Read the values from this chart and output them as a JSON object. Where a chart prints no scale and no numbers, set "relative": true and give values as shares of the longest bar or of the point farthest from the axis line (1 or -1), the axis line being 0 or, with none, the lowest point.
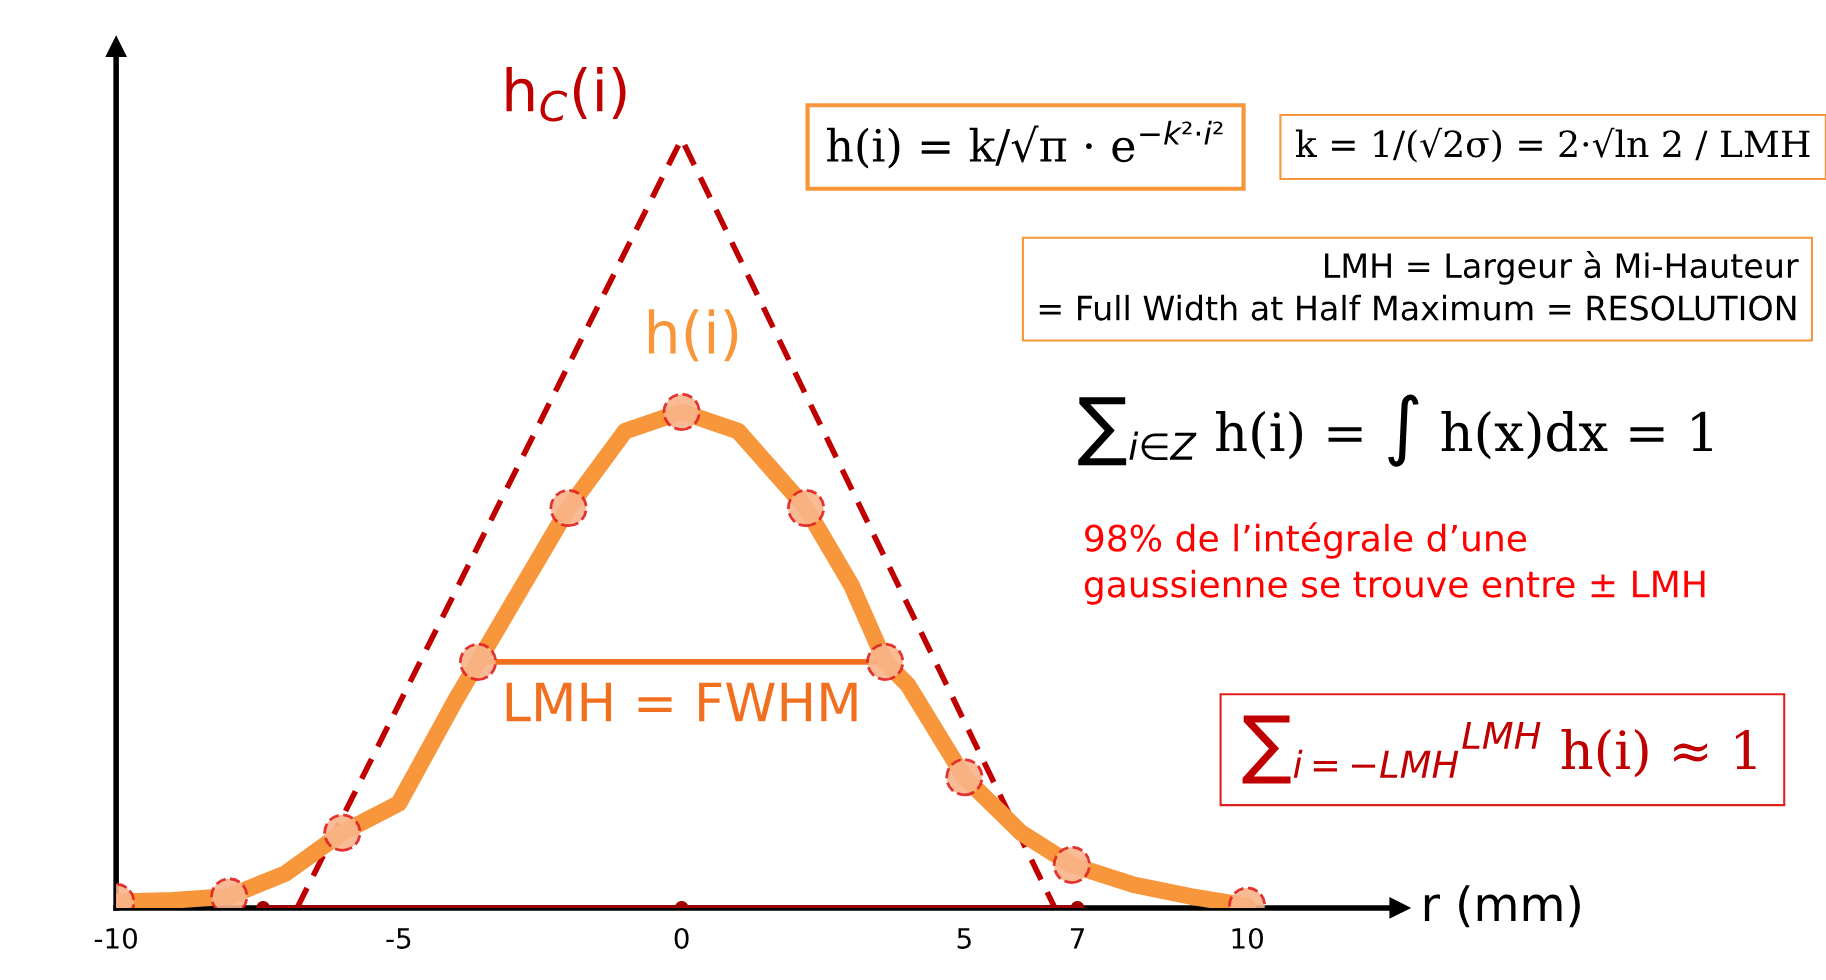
{
  "chart_data": {
    "type": "line",
    "relative": true,
    "xlabel": "r (mm)",
    "xlim": [
      -10,
      12.7
    ],
    "xticks": [
      -10,
      -5,
      0,
      5,
      7,
      10
    ],
    "legend": false,
    "grid": false,
    "series": [
      {
        "name": "h$_{C}$(i)",
        "line_style": "dashed",
        "marker": "none",
        "color": "#c00000",
        "x": [
          -6.8,
          0,
          6.6
        ],
        "values": [
          0,
          1,
          0
        ]
      },
      {
        "name": "h(i)",
        "line_style": "solid",
        "marker": "none",
        "color": "#f7963a",
        "x": [
          -10,
          -9,
          -8,
          -7,
          -6,
          -5,
          -4,
          -3.6,
          -2,
          -1,
          0,
          1,
          2.2,
          3,
          3.6,
          4,
          5,
          6,
          6.9,
          8,
          9,
          10
        ],
        "values": [
          0.008,
          0.01,
          0.015,
          0.045,
          0.098,
          0.136,
          0.27,
          0.32,
          0.52,
          0.62,
          0.645,
          0.62,
          0.52,
          0.42,
          0.32,
          0.29,
          0.17,
          0.098,
          0.056,
          0.03,
          0.015,
          0.003
        ]
      },
      {
        "type": "scatter",
        "marker": "circle",
        "color": "#f8b48a",
        "x": [
          -10,
          -8,
          -6,
          -3.6,
          -2,
          0,
          2.2,
          3.6,
          5,
          6.9,
          10
        ],
        "values": [
          0.008,
          0.015,
          0.098,
          0.32,
          0.52,
          0.645,
          0.52,
          0.32,
          0.17,
          0.056,
          0.003
        ]
      },
      {
        "type": "line",
        "line_style": "solid",
        "marker": "circle",
        "color": "#a00000",
        "x": [
          -7.4,
          0,
          7
        ],
        "values": [
          0,
          0,
          0
        ]
      },
      {
        "type": "line",
        "line_style": "solid",
        "marker": "circle",
        "color": "#f07020",
        "x": [
          -3.6,
          3.6
        ],
        "values": [
          0.32,
          0.32
        ]
      }
    ],
    "annotations": [
      {
        "text": "LMH = FWHM",
        "x": 0,
        "y": 0.32
      },
      "h(i) = k/√π · e$^{−k²·i²}$",
      "k = 1/(√2σ) = 2·√ln 2 / LMH",
      "LMH = Largeur à Mi-Hauteur\n= Full Width at Half Maximum = RESOLUTION",
      "∑$_{i∈Z}$ h(i) = ∫ h(x)dx = 1",
      "98% de l’intégrale d’une\ngaussienne se trouve entre ± LMH",
      "∑$_{i=−LMH}$$^{LMH}$ h(i) ≈ 1"
    ]
  }
}
